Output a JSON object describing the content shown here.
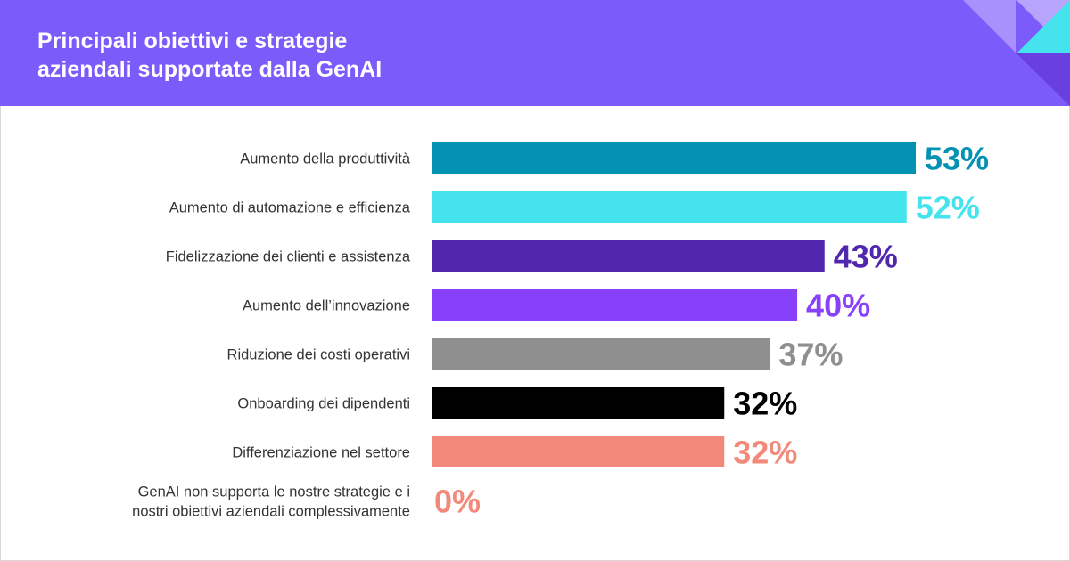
{
  "header": {
    "title_line1": "Principali obiettivi e strategie",
    "title_line2": "aziendali supportate dalla GenAI",
    "background": "#7b5cfa"
  },
  "chart_data": {
    "type": "bar",
    "orientation": "horizontal",
    "title": "Principali obiettivi e strategie aziendali supportate dalla GenAI",
    "xlabel": "",
    "ylabel": "",
    "xlim": [
      0,
      53
    ],
    "grid": false,
    "unit": "%",
    "categories": [
      [
        "Aumento della produttività"
      ],
      [
        "Aumento di automazione e efficienza"
      ],
      [
        "Fidelizzazione dei clienti e assistenza"
      ],
      [
        "Aumento dell’innovazione"
      ],
      [
        "Riduzione dei costi operativi"
      ],
      [
        "Onboarding dei dipendenti"
      ],
      [
        "Differenziazione nel settore"
      ],
      [
        "GenAI non supporta le nostre strategie e i",
        "nostri obiettivi aziendali complessivamente"
      ]
    ],
    "values": [
      53,
      52,
      43,
      40,
      37,
      32,
      32,
      0
    ],
    "value_labels": [
      "53%",
      "52%",
      "43%",
      "40%",
      "37%",
      "32%",
      "32%",
      "0%"
    ],
    "colors": [
      "#0391b4",
      "#44e3ed",
      "#5027ad",
      "#8840fb",
      "#8f8f8f",
      "#000000",
      "#f3897a",
      "#f3897a"
    ]
  }
}
